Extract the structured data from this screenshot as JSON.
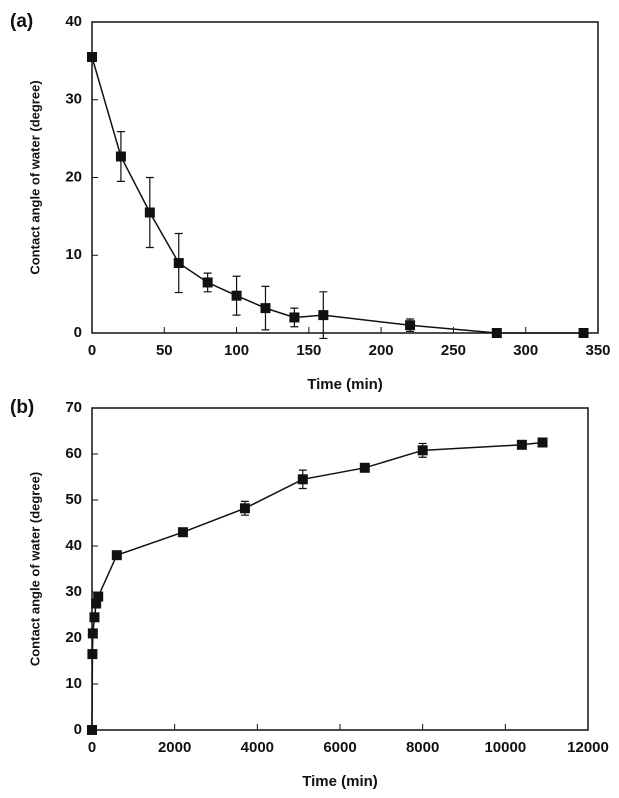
{
  "chart_data": [
    {
      "type": "line",
      "label": "(a)",
      "x_label": "Time (min)",
      "y_label": "Contact angle of water (degree)",
      "x": [
        0,
        20,
        40,
        60,
        80,
        100,
        120,
        140,
        160,
        220,
        280,
        340
      ],
      "values": [
        35.5,
        22.7,
        15.5,
        9,
        6.5,
        4.8,
        3.2,
        2,
        2.3,
        1,
        0,
        0
      ],
      "errors": [
        0,
        3.2,
        4.5,
        3.8,
        1.2,
        2.5,
        2.8,
        1.2,
        3,
        0.8,
        0,
        0
      ],
      "color": "#111111",
      "xlim": [
        0,
        350
      ],
      "xticks": [
        0,
        50,
        100,
        150,
        200,
        250,
        300,
        350
      ],
      "ylim": [
        0,
        40
      ],
      "yticks": [
        0,
        10,
        20,
        30,
        40
      ]
    },
    {
      "type": "line",
      "label": "(b)",
      "x_label": "Time (min)",
      "y_label": "Contact angle of water (degree)",
      "x": [
        0,
        10,
        20,
        60,
        100,
        150,
        600,
        2200,
        3700,
        5100,
        6600,
        8000,
        10400,
        10900
      ],
      "values": [
        0,
        16.5,
        21,
        24.5,
        27.5,
        29,
        38,
        43,
        48.2,
        54.5,
        57,
        60.8,
        62,
        62.5
      ],
      "errors": [
        0,
        0,
        0,
        0,
        0.8,
        0.8,
        0.8,
        0.8,
        1.5,
        2,
        0.8,
        1.5,
        0.6,
        0.6
      ],
      "color": "#111111",
      "xlim": [
        0,
        12000
      ],
      "xticks": [
        0,
        2000,
        4000,
        6000,
        8000,
        10000,
        12000
      ],
      "ylim": [
        0,
        70
      ],
      "yticks": [
        0,
        10,
        20,
        30,
        40,
        50,
        60,
        70
      ]
    }
  ]
}
